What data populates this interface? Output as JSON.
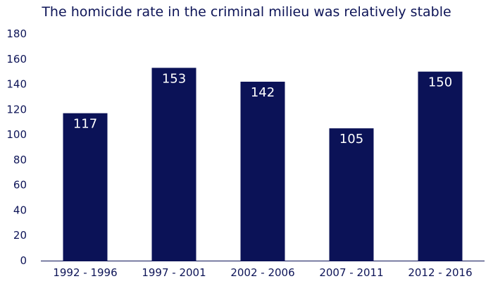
{
  "chart_data": {
    "type": "bar",
    "title": "The homicide rate in the criminal milieu was relatively stable",
    "categories": [
      "1992 - 1996",
      "1997 - 2001",
      "2002 - 2006",
      "2007 - 2011",
      "2012 - 2016"
    ],
    "values": [
      117,
      153,
      142,
      105,
      150
    ],
    "data_labels": [
      "117",
      "153",
      "142",
      "105",
      "150"
    ],
    "xlabel": "",
    "ylabel": "",
    "ylim": [
      0,
      180
    ],
    "yticks": [
      0,
      20,
      40,
      60,
      80,
      100,
      120,
      140,
      160,
      180
    ],
    "grid": false,
    "legend": "none",
    "bar_color": "#0b1257",
    "axis_color": "#0d1457"
  }
}
